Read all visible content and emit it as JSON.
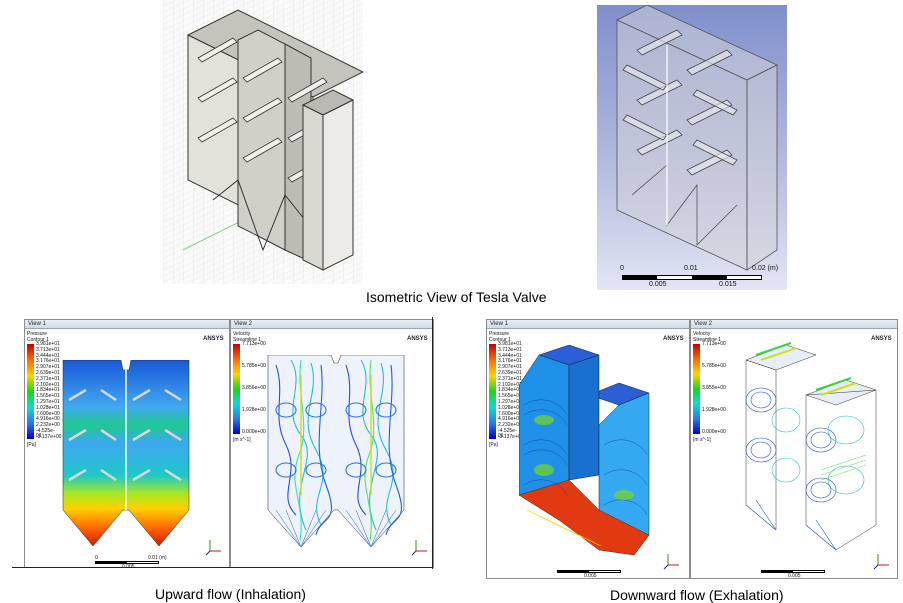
{
  "captions": {
    "isometric": "Isometric View of Tesla Valve",
    "upward": "Upward flow (Inhalation)",
    "downward": "Downward flow (Exhalation)"
  },
  "top_scale": {
    "ticks_upper": [
      "0",
      "0.01",
      "0.02 (m)"
    ],
    "ticks_lower": [
      "0.005",
      "0.015"
    ]
  },
  "views": {
    "view1": "View 1",
    "view2": "View 2"
  },
  "pressure_legend": {
    "title": "Pressure\nContour 1",
    "values": [
      "3.981e+01",
      "3.713e+01",
      "3.444e+01",
      "3.176e+01",
      "2.907e+01",
      "2.639e+01",
      "2.371e+01",
      "2.102e+01",
      "1.834e+01",
      "1.565e+01",
      "1.297e+01",
      "1.028e+01",
      "7.600e+00",
      "4.916e+00",
      "2.232e+00",
      "-4.525e-01",
      "-3.137e+00"
    ],
    "unit": "[Pa]"
  },
  "velocity_legend_left": {
    "title": "Velocity\nStreamline 1",
    "values": [
      "7.713e+00",
      "5.785e+00",
      "3.856e+00",
      "1.928e+00",
      "0.000e+00"
    ],
    "unit": "[m s^-1]"
  },
  "velocity_legend_right": {
    "title": "Velocity\nStreamline 1",
    "values": [
      "7.713e+00",
      "5.785e+00",
      "3.855e+00",
      "1.928e+00",
      "0.000e+00"
    ],
    "unit": "[m s^-1]"
  },
  "logo": "ANSYS",
  "bottom_scale": {
    "ticks_upper": [
      "0",
      "0.01 (m)"
    ],
    "ticks_lower": [
      "0.005"
    ]
  },
  "colors": {
    "legend_top": "#c40000",
    "legend_mid": "#18d818",
    "legend_bottom": "#0000c8",
    "field_blue": "#2d88e8"
  }
}
